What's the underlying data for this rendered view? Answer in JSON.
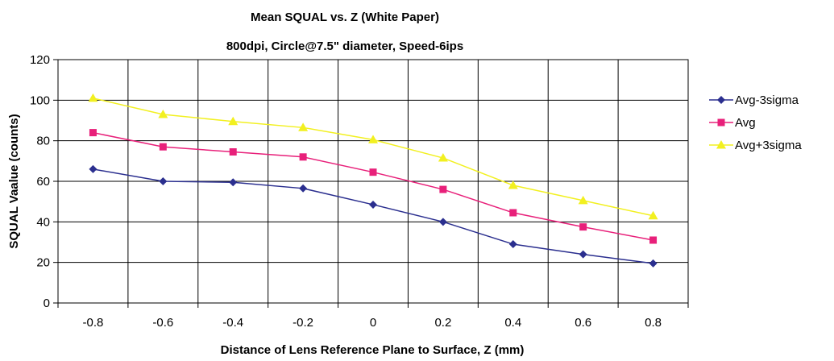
{
  "chart_data": {
    "type": "line",
    "title": "Mean SQUAL vs. Z (White Paper)",
    "subtitle": "800dpi, Circle@7.5\" diameter, Speed-6ips",
    "xlabel": "Distance of Lens Reference Plane to Surface, Z (mm)",
    "ylabel": "SQUAL Vaalue (counts)",
    "categories": [
      "-0.8",
      "-0.6",
      "-0.4",
      "-0.2",
      "0",
      "0.2",
      "0.4",
      "0.6",
      "0.8"
    ],
    "ylim": [
      0,
      120
    ],
    "yticks": [
      "0",
      "20",
      "40",
      "60",
      "80",
      "100",
      "120"
    ],
    "grid": true,
    "legend_position": "right",
    "series": [
      {
        "name": "Avg-3sigma",
        "color": "#2b2f8f",
        "marker": "diamond",
        "values": [
          66,
          60,
          59.5,
          56.5,
          48.5,
          40,
          29,
          24,
          19.5
        ]
      },
      {
        "name": "Avg",
        "color": "#e8207a",
        "marker": "square",
        "values": [
          84,
          77,
          74.5,
          72,
          64.5,
          56,
          44.5,
          37.5,
          31
        ]
      },
      {
        "name": "Avg+3sigma",
        "color": "#f2f020",
        "marker": "triangle",
        "values": [
          101,
          93,
          89.5,
          86.5,
          80.5,
          71.5,
          58,
          50.5,
          43
        ]
      }
    ]
  }
}
